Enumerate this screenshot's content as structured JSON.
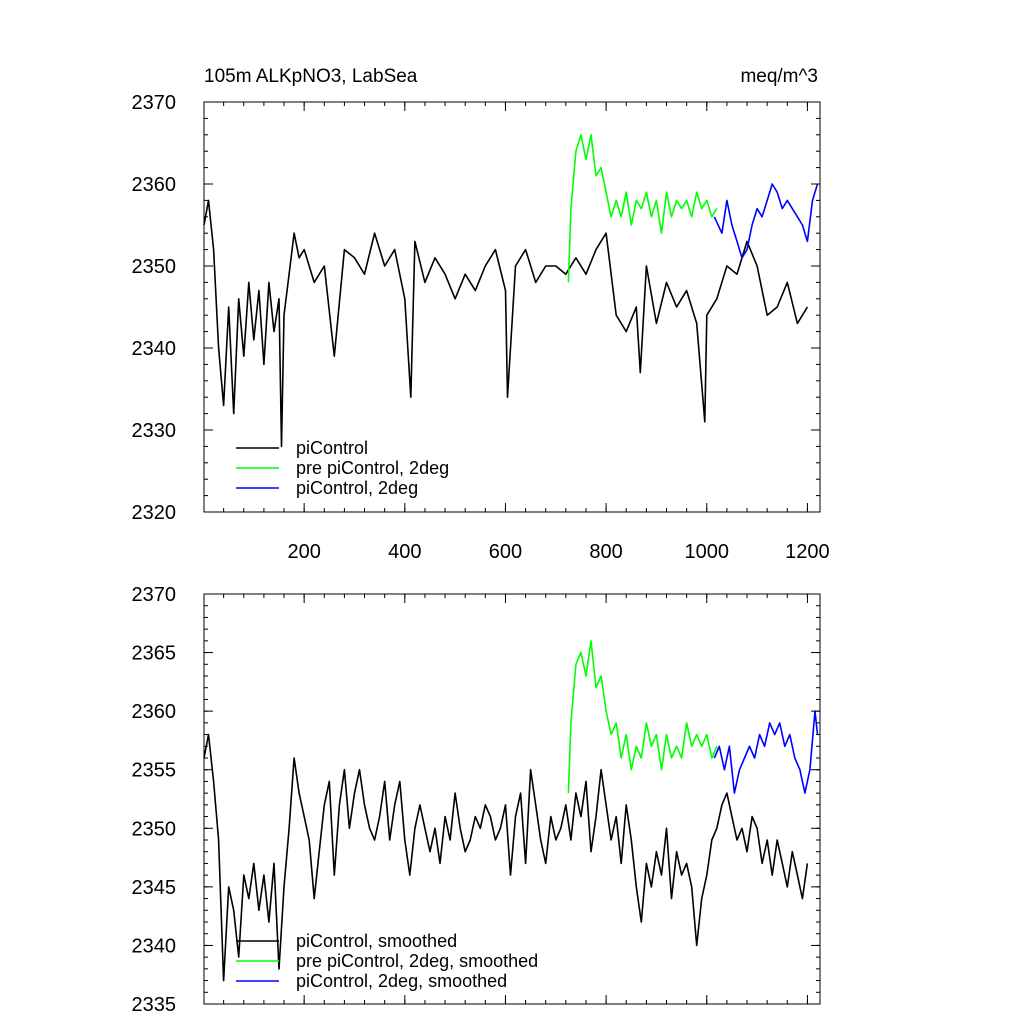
{
  "chart_data": [
    {
      "type": "line",
      "title": "105m ALKpNO3, LabSea",
      "units": "meq/m^3",
      "xlim": [
        1,
        1225
      ],
      "ylim": [
        2320,
        2370
      ],
      "xticks": [
        200,
        400,
        600,
        800,
        1000,
        1200
      ],
      "xtick_labels": [
        "200",
        "400",
        "600",
        "800",
        "1000",
        "1200"
      ],
      "yticks": [
        2320,
        2330,
        2340,
        2350,
        2360,
        2370
      ],
      "ytick_labels": [
        "2320",
        "2330",
        "2340",
        "2350",
        "2360",
        "2370"
      ],
      "grid": false,
      "legend_position": "bottom-left",
      "series": [
        {
          "name": "piControl",
          "color": "#000000",
          "x": [
            1,
            10,
            20,
            30,
            40,
            50,
            60,
            70,
            80,
            90,
            100,
            110,
            120,
            130,
            140,
            150,
            155,
            160,
            170,
            180,
            190,
            200,
            220,
            240,
            260,
            280,
            300,
            320,
            340,
            360,
            380,
            400,
            412,
            420,
            440,
            460,
            480,
            500,
            520,
            540,
            560,
            580,
            600,
            604,
            620,
            640,
            660,
            680,
            700,
            720,
            740,
            760,
            780,
            800,
            820,
            840,
            860,
            868,
            880,
            900,
            920,
            940,
            960,
            980,
            996,
            1000,
            1020,
            1040,
            1060,
            1080,
            1100,
            1120,
            1140,
            1160,
            1180,
            1200
          ],
          "y": [
            2355,
            2358,
            2352,
            2340,
            2333,
            2345,
            2332,
            2346,
            2339,
            2348,
            2341,
            2347,
            2338,
            2348,
            2342,
            2346,
            2328,
            2344,
            2349,
            2354,
            2351,
            2352,
            2348,
            2350,
            2339,
            2352,
            2351,
            2349,
            2354,
            2350,
            2352,
            2346,
            2334,
            2353,
            2348,
            2351,
            2349,
            2346,
            2349,
            2347,
            2350,
            2352,
            2347,
            2334,
            2350,
            2352,
            2348,
            2350,
            2350,
            2349,
            2351,
            2349,
            2352,
            2354,
            2344,
            2342,
            2345,
            2337,
            2350,
            2343,
            2348,
            2345,
            2347,
            2343,
            2331,
            2344,
            2346,
            2350,
            2349,
            2353,
            2350,
            2344,
            2345,
            2348,
            2343,
            2345
          ]
        },
        {
          "name": "pre piControl, 2deg",
          "color": "#00ff00",
          "x": [
            725,
            730,
            740,
            750,
            760,
            770,
            780,
            790,
            800,
            810,
            820,
            830,
            840,
            850,
            860,
            870,
            880,
            890,
            900,
            910,
            920,
            930,
            940,
            950,
            960,
            970,
            980,
            990,
            1000,
            1010,
            1020
          ],
          "y": [
            2348,
            2357,
            2364,
            2366,
            2363,
            2366,
            2361,
            2362,
            2359,
            2356,
            2358,
            2356,
            2359,
            2355,
            2358,
            2357,
            2359,
            2356,
            2358,
            2354,
            2359,
            2356,
            2358,
            2357,
            2358,
            2356,
            2359,
            2357,
            2358,
            2356,
            2357
          ]
        },
        {
          "name": "piControl, 2deg",
          "color": "#0000ff",
          "x": [
            1015,
            1030,
            1040,
            1050,
            1060,
            1070,
            1080,
            1090,
            1100,
            1110,
            1120,
            1130,
            1140,
            1150,
            1160,
            1170,
            1180,
            1190,
            1200,
            1210,
            1220
          ],
          "y": [
            2356,
            2354,
            2358,
            2355,
            2353,
            2351,
            2352,
            2355,
            2357,
            2356,
            2358,
            2360,
            2359,
            2357,
            2358,
            2357,
            2356,
            2355,
            2353,
            2358,
            2360
          ]
        }
      ]
    },
    {
      "type": "line",
      "xlim": [
        1,
        1225
      ],
      "ylim": [
        2335,
        2370
      ],
      "xticks": [
        200,
        400,
        600,
        800,
        1000,
        1200
      ],
      "yticks": [
        2335,
        2340,
        2345,
        2350,
        2355,
        2360,
        2365,
        2370
      ],
      "ytick_labels": [
        "2335",
        "2340",
        "2345",
        "2350",
        "2355",
        "2360",
        "2365",
        "2370"
      ],
      "grid": false,
      "legend_position": "bottom-left",
      "series": [
        {
          "name": "piControl, smoothed",
          "color": "#000000",
          "x": [
            1,
            10,
            20,
            30,
            40,
            50,
            60,
            70,
            80,
            90,
            100,
            110,
            120,
            130,
            140,
            150,
            160,
            170,
            180,
            190,
            200,
            210,
            220,
            230,
            240,
            250,
            260,
            270,
            280,
            290,
            300,
            310,
            320,
            330,
            340,
            350,
            360,
            370,
            380,
            390,
            400,
            410,
            420,
            430,
            440,
            450,
            460,
            470,
            480,
            490,
            500,
            510,
            520,
            530,
            540,
            550,
            560,
            570,
            580,
            590,
            600,
            610,
            620,
            630,
            640,
            650,
            660,
            670,
            680,
            690,
            700,
            710,
            720,
            730,
            740,
            750,
            760,
            770,
            780,
            790,
            800,
            810,
            820,
            830,
            840,
            850,
            860,
            870,
            880,
            890,
            900,
            910,
            920,
            930,
            940,
            950,
            960,
            970,
            980,
            990,
            1000,
            1010,
            1020,
            1030,
            1040,
            1050,
            1060,
            1070,
            1080,
            1090,
            1100,
            1110,
            1120,
            1130,
            1140,
            1150,
            1160,
            1170,
            1180,
            1190,
            1200
          ],
          "y": [
            2356,
            2358,
            2354,
            2349,
            2337,
            2345,
            2343,
            2339,
            2346,
            2344,
            2347,
            2343,
            2346,
            2342,
            2347,
            2338,
            2345,
            2350,
            2356,
            2353,
            2351,
            2349,
            2344,
            2348,
            2352,
            2354,
            2346,
            2352,
            2355,
            2350,
            2353,
            2355,
            2352,
            2350,
            2349,
            2351,
            2354,
            2349,
            2352,
            2354,
            2349,
            2346,
            2350,
            2352,
            2350,
            2348,
            2350,
            2347,
            2351,
            2349,
            2353,
            2350,
            2348,
            2349,
            2351,
            2350,
            2352,
            2351,
            2349,
            2350,
            2352,
            2346,
            2351,
            2353,
            2347,
            2355,
            2352,
            2349,
            2347,
            2351,
            2349,
            2350,
            2352,
            2349,
            2353,
            2351,
            2354,
            2348,
            2351,
            2355,
            2352,
            2349,
            2351,
            2347,
            2352,
            2349,
            2345,
            2342,
            2347,
            2345,
            2348,
            2346,
            2350,
            2344,
            2348,
            2346,
            2347,
            2345,
            2340,
            2344,
            2346,
            2349,
            2350,
            2352,
            2353,
            2351,
            2349,
            2350,
            2348,
            2351,
            2350,
            2347,
            2349,
            2346,
            2349,
            2347,
            2345,
            2348,
            2346,
            2344,
            2347
          ]
        },
        {
          "name": "pre piControl, 2deg, smoothed",
          "color": "#00ff00",
          "x": [
            725,
            730,
            740,
            750,
            760,
            770,
            780,
            790,
            800,
            810,
            820,
            830,
            840,
            850,
            860,
            870,
            880,
            890,
            900,
            910,
            920,
            930,
            940,
            950,
            960,
            970,
            980,
            990,
            1000,
            1010,
            1020
          ],
          "y": [
            2353,
            2359,
            2364,
            2365,
            2363,
            2366,
            2362,
            2363,
            2360,
            2358,
            2359,
            2356,
            2358,
            2355,
            2357,
            2356,
            2359,
            2357,
            2358,
            2355,
            2358,
            2356,
            2357,
            2356,
            2359,
            2357,
            2358,
            2357,
            2358,
            2356,
            2357
          ]
        },
        {
          "name": "piControl, 2deg, smoothed",
          "color": "#0000ff",
          "x": [
            1015,
            1025,
            1035,
            1045,
            1055,
            1065,
            1075,
            1085,
            1095,
            1105,
            1115,
            1125,
            1135,
            1145,
            1155,
            1165,
            1175,
            1185,
            1195,
            1205,
            1215,
            1220
          ],
          "y": [
            2356,
            2357,
            2355,
            2357,
            2353,
            2355,
            2356,
            2357,
            2356,
            2358,
            2357,
            2359,
            2358,
            2359,
            2357,
            2358,
            2356,
            2355,
            2353,
            2355,
            2360,
            2358
          ]
        }
      ]
    }
  ]
}
